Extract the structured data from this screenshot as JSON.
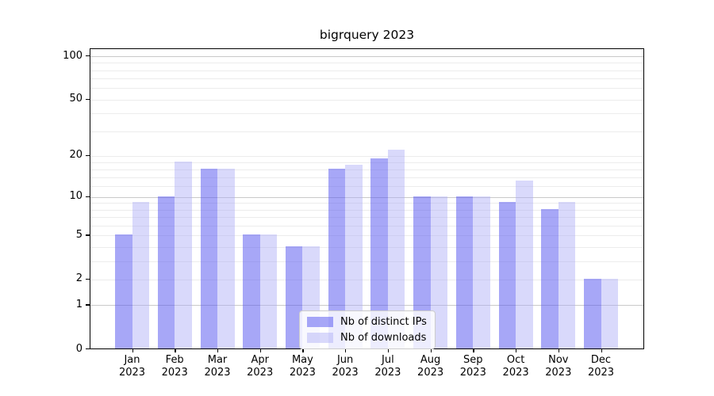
{
  "title": "bigrquery 2023",
  "chart_data": {
    "type": "bar",
    "title": "bigrquery 2023",
    "categories": [
      "Jan",
      "Feb",
      "Mar",
      "Apr",
      "May",
      "Jun",
      "Jul",
      "Aug",
      "Sep",
      "Oct",
      "Nov",
      "Dec"
    ],
    "year": "2023",
    "series": [
      {
        "name": "Nb of distinct IPs",
        "color": "rgba(86,86,240,0.52)",
        "values": [
          5,
          10,
          16,
          5,
          4,
          16,
          19,
          10,
          10,
          9,
          8,
          2
        ]
      },
      {
        "name": "Nb of downloads",
        "color": "rgba(170,170,247,0.45)",
        "values": [
          9,
          18,
          16,
          5,
          4,
          17,
          22,
          10,
          10,
          13,
          9,
          2
        ]
      }
    ],
    "xlabel": "",
    "ylabel": "",
    "y_axis": {
      "scale": "log1p",
      "range": [
        0,
        112
      ],
      "ticks": [
        0,
        1,
        2,
        5,
        10,
        20,
        50,
        100
      ],
      "major_grid_values": [
        1,
        10,
        100
      ],
      "minor_grid_values": [
        2,
        3,
        4,
        5,
        6,
        7,
        8,
        9,
        12,
        14,
        16,
        18,
        20,
        30,
        40,
        50,
        60,
        70,
        80,
        90
      ]
    },
    "grid": "horizontal",
    "legend_position": "lower center (inside plot)"
  },
  "colors": {
    "background": "#ffffff",
    "spine": "#000000",
    "major_grid": "#c9c9c9",
    "minor_grid": "#ececec",
    "series_dark": "rgba(86,86,240,0.52)",
    "series_light": "rgba(170,170,247,0.45)",
    "legend_border": "#cccccc"
  }
}
